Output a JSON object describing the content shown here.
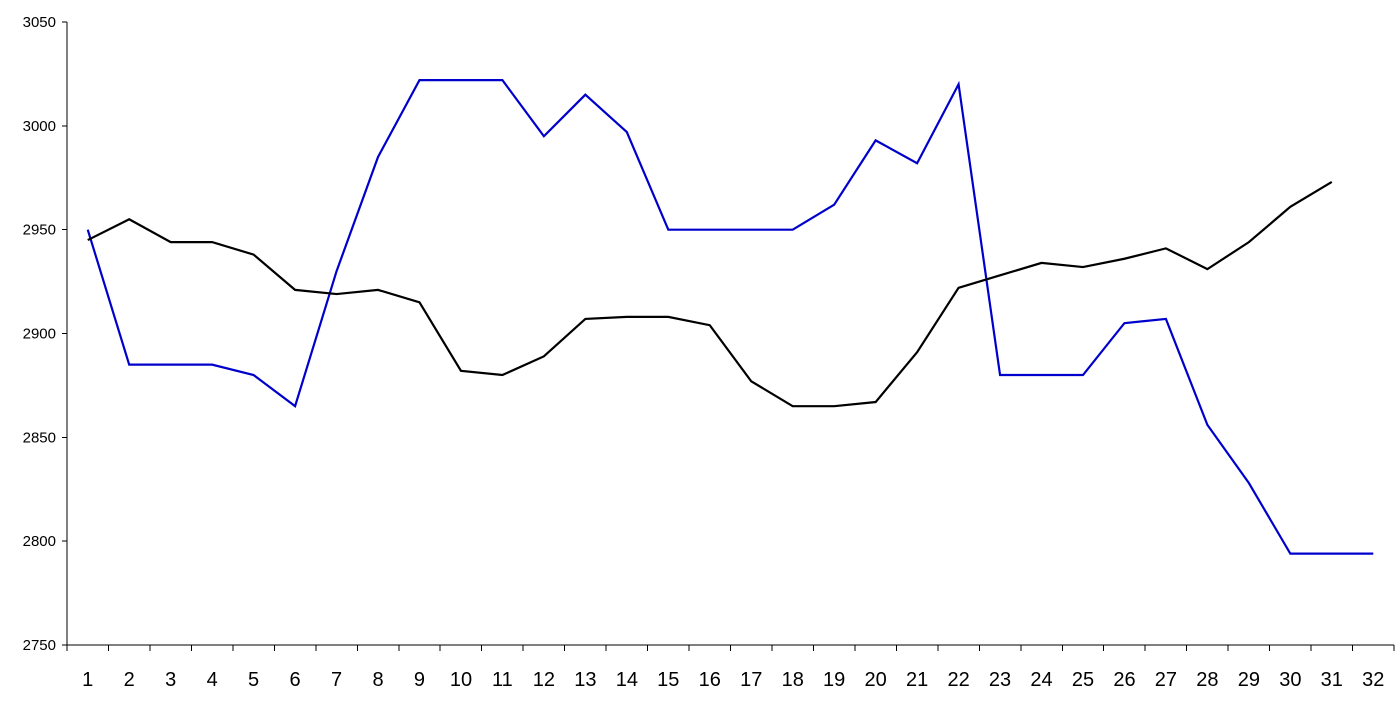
{
  "chart_data": {
    "type": "line",
    "title": "",
    "xlabel": "",
    "ylabel": "",
    "ylim": [
      2750,
      3050
    ],
    "yticks": [
      "2750",
      "2800",
      "2850",
      "2900",
      "2950",
      "3000",
      "3050"
    ],
    "categories": [
      "1",
      "2",
      "3",
      "4",
      "5",
      "6",
      "7",
      "8",
      "9",
      "10",
      "11",
      "12",
      "13",
      "14",
      "15",
      "16",
      "17",
      "18",
      "19",
      "20",
      "21",
      "22",
      "23",
      "24",
      "25",
      "26",
      "27",
      "28",
      "29",
      "30",
      "31",
      "32"
    ],
    "grid": false,
    "legend": "none",
    "series": [
      {
        "color": "#0000cc",
        "values": [
          2950,
          2885,
          2885,
          2885,
          2880,
          2865,
          2930,
          2985,
          3022,
          3022,
          3022,
          2995,
          3015,
          2997,
          2950,
          2950,
          2950,
          2950,
          2962,
          2993,
          2982,
          3020,
          2880,
          2880,
          2880,
          2905,
          2907,
          2856,
          2828,
          2794,
          2794,
          2794
        ]
      },
      {
        "color": "#000000",
        "values": [
          2945,
          2955,
          2944,
          2944,
          2938,
          2921,
          2919,
          2921,
          2915,
          2882,
          2880,
          2889,
          2907,
          2908,
          2908,
          2904,
          2877,
          2865,
          2865,
          2867,
          2891,
          2922,
          2928,
          2934,
          2932,
          2936,
          2941,
          2931,
          2944,
          2961,
          2973,
          null
        ]
      }
    ]
  }
}
